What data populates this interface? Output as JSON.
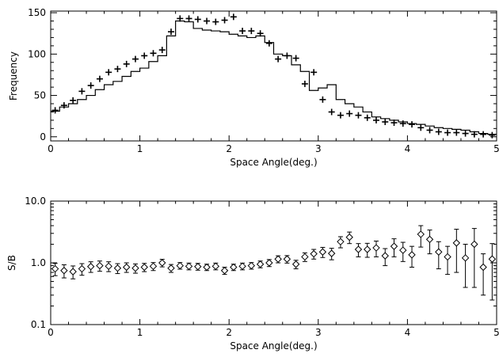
{
  "chart_data": [
    {
      "type": "line",
      "xlabel": "Space Angle(deg.)",
      "ylabel": "Frequency",
      "xlim": [
        0,
        5
      ],
      "ylim": [
        -5,
        152
      ],
      "xticks": [
        "0",
        "1",
        "2",
        "3",
        "4",
        "5"
      ],
      "yticks": [
        "0",
        "50",
        "100",
        "150"
      ],
      "grid": false,
      "series": [
        {
          "style": "histogram-step",
          "x": [
            0.05,
            0.15,
            0.25,
            0.35,
            0.45,
            0.55,
            0.65,
            0.75,
            0.85,
            0.95,
            1.05,
            1.15,
            1.25,
            1.35,
            1.45,
            1.55,
            1.65,
            1.75,
            1.85,
            1.95,
            2.05,
            2.15,
            2.25,
            2.35,
            2.45,
            2.55,
            2.65,
            2.75,
            2.85,
            2.95,
            3.05,
            3.15,
            3.25,
            3.35,
            3.45,
            3.55,
            3.65,
            3.75,
            3.85,
            3.95,
            4.05,
            4.15,
            4.25,
            4.35,
            4.45,
            4.55,
            4.65,
            4.75,
            4.85,
            4.95
          ],
          "values": [
            31,
            36,
            40,
            45,
            50,
            57,
            63,
            67,
            73,
            79,
            83,
            91,
            98,
            122,
            140,
            139,
            131,
            129,
            128,
            127,
            124,
            122,
            120,
            122,
            114,
            100,
            98,
            87,
            79,
            56,
            59,
            63,
            45,
            40,
            36,
            30,
            24,
            22,
            20,
            18,
            16,
            15,
            13,
            11,
            10,
            9,
            8,
            6,
            4,
            3
          ]
        },
        {
          "style": "plus-markers",
          "x": [
            0.05,
            0.15,
            0.25,
            0.35,
            0.45,
            0.55,
            0.65,
            0.75,
            0.85,
            0.95,
            1.05,
            1.15,
            1.25,
            1.35,
            1.45,
            1.55,
            1.65,
            1.75,
            1.85,
            1.95,
            2.05,
            2.15,
            2.25,
            2.35,
            2.45,
            2.55,
            2.65,
            2.75,
            2.85,
            2.95,
            3.05,
            3.15,
            3.25,
            3.35,
            3.45,
            3.55,
            3.65,
            3.75,
            3.85,
            3.95,
            4.05,
            4.15,
            4.25,
            4.35,
            4.45,
            4.55,
            4.65,
            4.75,
            4.85,
            4.95
          ],
          "values": [
            32,
            38,
            44,
            55,
            62,
            70,
            78,
            82,
            88,
            94,
            98,
            101,
            105,
            127,
            143,
            143,
            142,
            140,
            139,
            141,
            145,
            128,
            128,
            125,
            113,
            94,
            98,
            95,
            64,
            78,
            45,
            30,
            26,
            28,
            26,
            23,
            20,
            18,
            17,
            16,
            15,
            11,
            8,
            6,
            5,
            5,
            4,
            3,
            3,
            2
          ]
        }
      ]
    },
    {
      "type": "scatter",
      "xlabel": "Space Angle(deg.)",
      "ylabel": "S/B",
      "xlim": [
        0,
        5
      ],
      "ylim": [
        0.1,
        10
      ],
      "yscale": "log",
      "xticks": [
        "0",
        "1",
        "2",
        "3",
        "4",
        "5"
      ],
      "yticks": [
        "0.1",
        "1.0",
        "10.0"
      ],
      "grid": false,
      "series": [
        {
          "style": "diamond-with-errorbars",
          "x": [
            0.05,
            0.15,
            0.25,
            0.35,
            0.45,
            0.55,
            0.65,
            0.75,
            0.85,
            0.95,
            1.05,
            1.15,
            1.25,
            1.35,
            1.45,
            1.55,
            1.65,
            1.75,
            1.85,
            1.95,
            2.05,
            2.15,
            2.25,
            2.35,
            2.45,
            2.55,
            2.65,
            2.75,
            2.85,
            2.95,
            3.05,
            3.15,
            3.25,
            3.35,
            3.45,
            3.55,
            3.65,
            3.75,
            3.85,
            3.95,
            4.05,
            4.15,
            4.25,
            4.35,
            4.45,
            4.55,
            4.65,
            4.75,
            4.85,
            4.95
          ],
          "values": [
            0.8,
            0.75,
            0.72,
            0.8,
            0.87,
            0.9,
            0.88,
            0.82,
            0.85,
            0.82,
            0.85,
            0.88,
            1.0,
            0.82,
            0.9,
            0.88,
            0.87,
            0.85,
            0.88,
            0.75,
            0.85,
            0.88,
            0.9,
            0.95,
            1.0,
            1.15,
            1.15,
            0.95,
            1.25,
            1.4,
            1.5,
            1.42,
            2.2,
            2.6,
            1.65,
            1.65,
            1.75,
            1.3,
            1.85,
            1.6,
            1.35,
            2.9,
            2.4,
            1.5,
            1.25,
            2.1,
            1.2,
            2.0,
            0.85,
            1.15
          ],
          "errors": [
            0.18,
            0.18,
            0.17,
            0.17,
            0.17,
            0.17,
            0.16,
            0.15,
            0.15,
            0.14,
            0.13,
            0.13,
            0.14,
            0.12,
            0.11,
            0.11,
            0.11,
            0.1,
            0.11,
            0.1,
            0.1,
            0.11,
            0.11,
            0.12,
            0.13,
            0.15,
            0.16,
            0.15,
            0.2,
            0.25,
            0.28,
            0.3,
            0.45,
            0.55,
            0.4,
            0.42,
            0.5,
            0.4,
            0.6,
            0.55,
            0.5,
            1.1,
            1.0,
            0.7,
            0.6,
            1.4,
            0.8,
            1.6,
            0.55,
            0.9
          ]
        }
      ]
    }
  ]
}
